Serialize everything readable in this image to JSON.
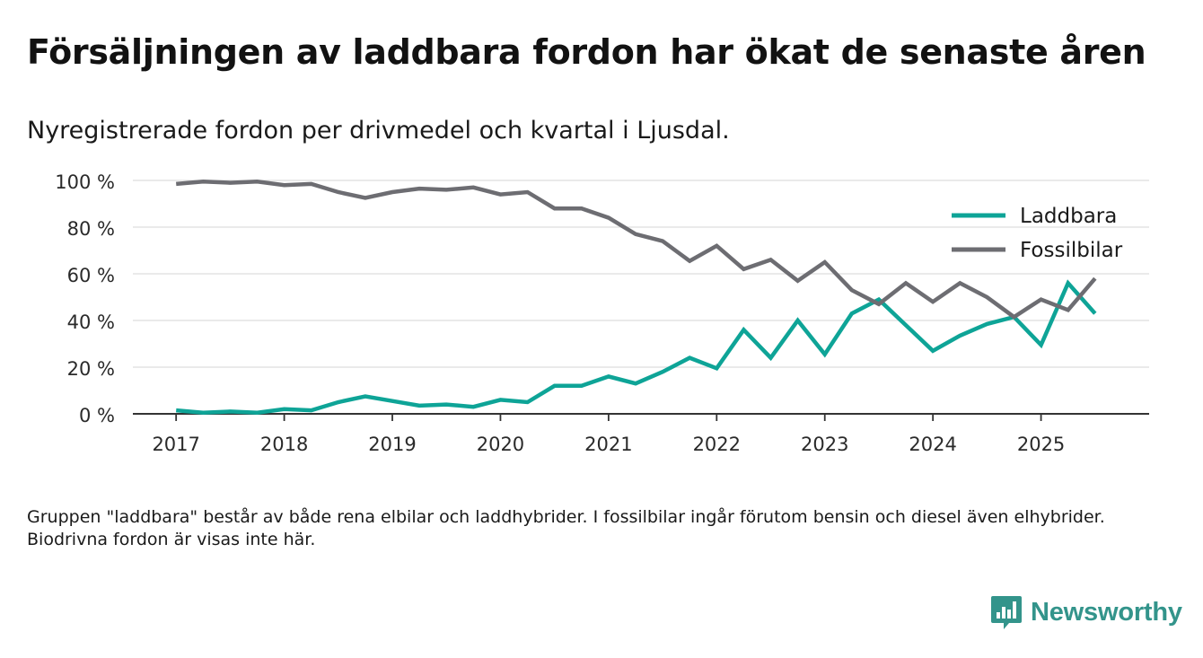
{
  "header": {
    "title": "Försäljningen av laddbara fordon har ökat de senaste åren",
    "subtitle": "Nyregistrerade fordon per drivmedel och kvartal i Ljusdal."
  },
  "chart_data": {
    "type": "line",
    "x_unit": "year-quarter",
    "x": [
      2017.0,
      2017.25,
      2017.5,
      2017.75,
      2018.0,
      2018.25,
      2018.5,
      2018.75,
      2019.0,
      2019.25,
      2019.5,
      2019.75,
      2020.0,
      2020.25,
      2020.5,
      2020.75,
      2021.0,
      2021.25,
      2021.5,
      2021.75,
      2022.0,
      2022.25,
      2022.5,
      2022.75,
      2023.0,
      2023.25,
      2023.5,
      2023.75,
      2024.0,
      2024.25,
      2024.5,
      2024.75,
      2025.0,
      2025.25,
      2025.5
    ],
    "series": [
      {
        "name": "Laddbara",
        "color": "#0ea497",
        "values": [
          1.5,
          0.5,
          1,
          0.5,
          2,
          1.5,
          5,
          7.5,
          5.5,
          3.5,
          4,
          3,
          6,
          5,
          12,
          12,
          16,
          13,
          18,
          24,
          19.5,
          36,
          24,
          40,
          25.5,
          43,
          49,
          38,
          27,
          33.5,
          38.5,
          41.5,
          29.5,
          56,
          43
        ]
      },
      {
        "name": "Fossilbilar",
        "color": "#6d6d72",
        "values": [
          98.5,
          99.5,
          99,
          99.5,
          98,
          98.5,
          95,
          92.5,
          95,
          96.5,
          96,
          97,
          94,
          95,
          88,
          88,
          84,
          77,
          74,
          65.5,
          72,
          62,
          66,
          57,
          65,
          53,
          47,
          56,
          48,
          56,
          50,
          41.5,
          49,
          44.5,
          58
        ]
      }
    ],
    "x_ticks": [
      2017,
      2018,
      2019,
      2020,
      2021,
      2022,
      2023,
      2024,
      2025
    ],
    "x_tick_labels": [
      "2017",
      "2018",
      "2019",
      "2020",
      "2021",
      "2022",
      "2023",
      "2024",
      "2025"
    ],
    "y_ticks": [
      0,
      20,
      40,
      60,
      80,
      100
    ],
    "y_tick_labels": [
      "0 %",
      "20 %",
      "40 %",
      "60 %",
      "80 %",
      "100 %"
    ],
    "ylim": [
      0,
      100
    ],
    "xlim": [
      2016.6,
      2026.0
    ],
    "grid": true,
    "legend_position": "top-right",
    "xlabel": "",
    "ylabel": ""
  },
  "footnote": "Gruppen \"laddbara\" består av både rena elbilar och laddhybrider. I fossilbilar ingår förutom bensin och diesel även elhybrider. Biodrivna fordon är visas inte här.",
  "brand": {
    "name": "Newsworthy",
    "icon": "newsworthy-logo-icon",
    "color": "#33948b"
  }
}
